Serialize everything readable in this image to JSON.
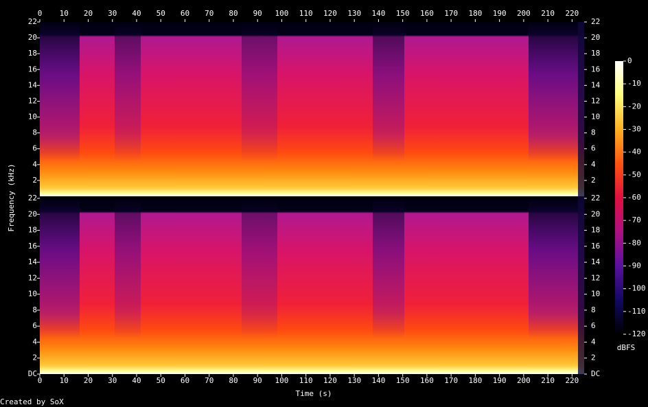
{
  "chart_data": {
    "type": "spectrogram",
    "xlabel": "Time (s)",
    "ylabel": "Frequency (kHz)",
    "xlim": [
      0,
      225
    ],
    "xticks": [
      0,
      10,
      20,
      30,
      40,
      50,
      60,
      70,
      80,
      90,
      100,
      110,
      120,
      130,
      140,
      150,
      160,
      170,
      180,
      190,
      200,
      210,
      220
    ],
    "channels": [
      {
        "ylim": [
          0,
          22
        ],
        "yticks": [
          2,
          4,
          6,
          8,
          10,
          12,
          14,
          16,
          18,
          20,
          22
        ]
      },
      {
        "ylim": [
          0,
          22
        ],
        "yticks": [
          {
            "value": 0,
            "label": "DC"
          },
          2,
          4,
          6,
          8,
          10,
          12,
          14,
          16,
          18,
          20,
          22
        ]
      }
    ],
    "colorbar": {
      "label": "dBFS",
      "lim": [
        -120,
        0
      ],
      "ticks": [
        0,
        -10,
        -20,
        -30,
        -40,
        -50,
        -60,
        -70,
        -80,
        -90,
        -100,
        -110,
        -120
      ]
    },
    "footer": "Created by SoX"
  }
}
